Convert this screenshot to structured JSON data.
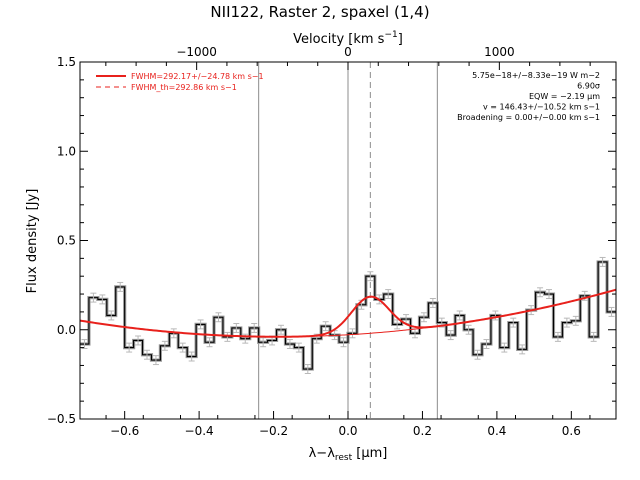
{
  "colors": {
    "axis": "#000000",
    "data_step": "#000000",
    "data_step_shadow": "#9a9a9a",
    "error_bars": "#b8b8b8",
    "fit": "#e8211c",
    "baseline": "#e8211c",
    "vlines": "#8c8c8c",
    "center_dashed": "#8c8c8c"
  },
  "chart_data": {
    "type": "line",
    "title": "NII122, Raster 2, spaxel (1,4)",
    "xlabel": "λ−λrest [μm]",
    "ylabel": "Flux density [Jy]",
    "top_xlabel": "Velocity [km s−1]",
    "xlim": [
      -0.72,
      0.72
    ],
    "ylim": [
      -0.5,
      1.5
    ],
    "x_ticks": [
      -0.6,
      -0.4,
      -0.2,
      0.0,
      0.2,
      0.4,
      0.6
    ],
    "x_tick_labels": [
      "−0.6",
      "−0.4",
      "−0.2",
      "0.0",
      "0.2",
      "0.4",
      "0.6"
    ],
    "y_ticks": [
      -0.5,
      0.0,
      0.5,
      1.0,
      1.5
    ],
    "y_tick_labels": [
      "−0.5",
      "0.0",
      "0.5",
      "1.0",
      "1.5"
    ],
    "velocity_ticks": [
      -1000,
      0,
      1000
    ],
    "velocity_tick_labels": [
      "−1000",
      "0",
      "1000"
    ],
    "rest_wavelength_um": 121.9,
    "vertical_lines": [
      -0.24,
      0.0,
      0.24
    ],
    "dashed_line": 0.06,
    "legend": {
      "position": "top-left",
      "entries": [
        {
          "label": "FWHM=292.17+/−24.78 km s−1",
          "style": "solid"
        },
        {
          "label": "FWHM_th=292.86 km s−1",
          "style": "dashed"
        }
      ]
    },
    "annotations": [
      "5.75e−18+/−8.33e−19 W m−2",
      "6.90σ",
      "EQW = −2.19 μm",
      "v = 146.43+/−10.52 km s−1",
      "Broadening = 0.00+/−0.00 km s−1"
    ],
    "series": [
      {
        "x": [
          -0.72,
          -0.696,
          -0.672,
          -0.648,
          -0.624,
          -0.6,
          -0.576,
          -0.552,
          -0.528,
          -0.504,
          -0.48,
          -0.456,
          -0.432,
          -0.408,
          -0.384,
          -0.36,
          -0.336,
          -0.312,
          -0.288,
          -0.264,
          -0.24,
          -0.216,
          -0.192,
          -0.168,
          -0.144,
          -0.12,
          -0.096,
          -0.072,
          -0.048,
          -0.024,
          0.0,
          0.024,
          0.048,
          0.072,
          0.096,
          0.12,
          0.144,
          0.168,
          0.192,
          0.216,
          0.24,
          0.264,
          0.288,
          0.312,
          0.336,
          0.36,
          0.384,
          0.408,
          0.432,
          0.456,
          0.48,
          0.504,
          0.528,
          0.552,
          0.576,
          0.6,
          0.624,
          0.648,
          0.672,
          0.696
        ],
        "values": [
          -0.08,
          0.18,
          0.17,
          0.08,
          0.24,
          -0.1,
          -0.06,
          -0.14,
          -0.17,
          -0.09,
          -0.02,
          -0.1,
          -0.15,
          0.03,
          -0.07,
          0.07,
          -0.04,
          0.01,
          -0.05,
          0.01,
          -0.07,
          -0.06,
          0.0,
          -0.08,
          -0.1,
          -0.22,
          -0.05,
          0.02,
          -0.03,
          -0.07,
          -0.02,
          0.14,
          0.3,
          0.17,
          0.2,
          0.03,
          0.06,
          -0.02,
          0.07,
          0.15,
          0.04,
          -0.03,
          0.08,
          0.0,
          -0.14,
          -0.08,
          0.08,
          -0.1,
          0.04,
          -0.11,
          0.11,
          0.21,
          0.2,
          -0.04,
          0.04,
          0.05,
          0.19,
          -0.04,
          0.38,
          0.1
        ],
        "errors": [
          0.025,
          0.025,
          0.025,
          0.025,
          0.025,
          0.025,
          0.025,
          0.025,
          0.025,
          0.025,
          0.025,
          0.025,
          0.025,
          0.025,
          0.025,
          0.025,
          0.025,
          0.025,
          0.025,
          0.025,
          0.025,
          0.025,
          0.025,
          0.025,
          0.025,
          0.025,
          0.025,
          0.025,
          0.025,
          0.025,
          0.025,
          0.025,
          0.025,
          0.025,
          0.025,
          0.025,
          0.025,
          0.025,
          0.025,
          0.025,
          0.025,
          0.025,
          0.025,
          0.025,
          0.025,
          0.025,
          0.025,
          0.025,
          0.025,
          0.025,
          0.025,
          0.025,
          0.025,
          0.025,
          0.025,
          0.025,
          0.025,
          0.025,
          0.025,
          0.025
        ]
      }
    ],
    "fit_model": {
      "center": 0.06,
      "amplitude": 0.205,
      "fwhm": 0.119,
      "baseline_poly": [
        -0.028,
        0.12,
        0.32
      ]
    }
  }
}
